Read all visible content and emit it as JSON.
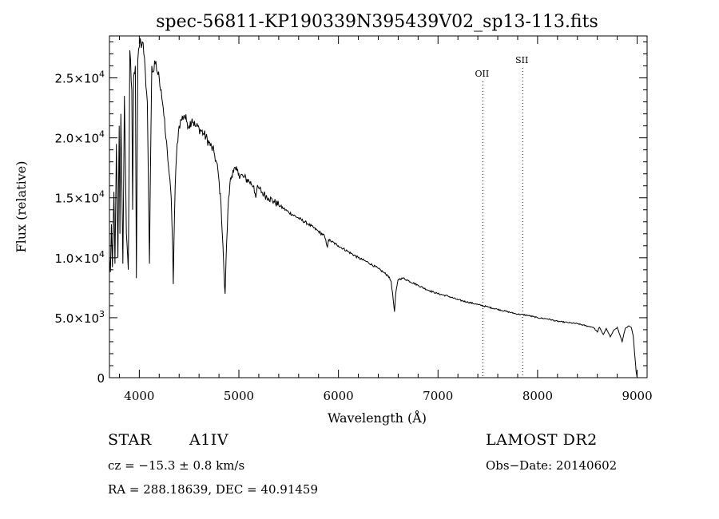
{
  "chart_data": {
    "type": "line",
    "title": "spec-56811-KP190339N395439V02_sp13-113.fits",
    "xlabel": "Wavelength (Å)",
    "ylabel": "Flux (relative)",
    "xlim": [
      3700,
      9100
    ],
    "ylim": [
      0,
      28500
    ],
    "grid": false,
    "x_ticks": [
      4000,
      5000,
      6000,
      7000,
      8000,
      9000
    ],
    "x_tick_labels": [
      "4000",
      "5000",
      "6000",
      "7000",
      "8000",
      "9000"
    ],
    "y_ticks": [
      {
        "value": 0,
        "mantissa": "0",
        "exponent": ""
      },
      {
        "value": 5000,
        "mantissa": "5.0×10",
        "exponent": "3"
      },
      {
        "value": 10000,
        "mantissa": "1.0×10",
        "exponent": "4"
      },
      {
        "value": 15000,
        "mantissa": "1.5×10",
        "exponent": "4"
      },
      {
        "value": 20000,
        "mantissa": "2.0×10",
        "exponent": "4"
      },
      {
        "value": 25000,
        "mantissa": "2.5×10",
        "exponent": "4"
      }
    ],
    "line_markers": [
      {
        "label": "OII",
        "x": 7450
      },
      {
        "label": "SII",
        "x": 7850
      }
    ],
    "series": [
      {
        "values": [
          {
            "x": 3700,
            "y": 10000
          },
          {
            "x": 3710,
            "y": 8800
          },
          {
            "x": 3720,
            "y": 12800
          },
          {
            "x": 3730,
            "y": 9200
          },
          {
            "x": 3745,
            "y": 15500
          },
          {
            "x": 3755,
            "y": 9500
          },
          {
            "x": 3770,
            "y": 19500
          },
          {
            "x": 3785,
            "y": 10000
          },
          {
            "x": 3798,
            "y": 21000
          },
          {
            "x": 3805,
            "y": 12000
          },
          {
            "x": 3815,
            "y": 22000
          },
          {
            "x": 3835,
            "y": 9500
          },
          {
            "x": 3850,
            "y": 23500
          },
          {
            "x": 3870,
            "y": 12000
          },
          {
            "x": 3889,
            "y": 9000
          },
          {
            "x": 3905,
            "y": 27300
          },
          {
            "x": 3925,
            "y": 24000
          },
          {
            "x": 3933,
            "y": 14000
          },
          {
            "x": 3942,
            "y": 25000
          },
          {
            "x": 3960,
            "y": 26000
          },
          {
            "x": 3970,
            "y": 8300
          },
          {
            "x": 3985,
            "y": 26500
          },
          {
            "x": 4000,
            "y": 27600
          },
          {
            "x": 4010,
            "y": 28300
          },
          {
            "x": 4020,
            "y": 27500
          },
          {
            "x": 4030,
            "y": 28000
          },
          {
            "x": 4045,
            "y": 27000
          },
          {
            "x": 4060,
            "y": 25500
          },
          {
            "x": 4080,
            "y": 23000
          },
          {
            "x": 4095,
            "y": 14000
          },
          {
            "x": 4102,
            "y": 9500
          },
          {
            "x": 4110,
            "y": 16000
          },
          {
            "x": 4125,
            "y": 26000
          },
          {
            "x": 4140,
            "y": 25500
          },
          {
            "x": 4160,
            "y": 26200
          },
          {
            "x": 4180,
            "y": 25500
          },
          {
            "x": 4200,
            "y": 25000
          },
          {
            "x": 4220,
            "y": 24000
          },
          {
            "x": 4240,
            "y": 22500
          },
          {
            "x": 4260,
            "y": 20500
          },
          {
            "x": 4280,
            "y": 19000
          },
          {
            "x": 4300,
            "y": 17000
          },
          {
            "x": 4320,
            "y": 15000
          },
          {
            "x": 4335,
            "y": 11000
          },
          {
            "x": 4341,
            "y": 7800
          },
          {
            "x": 4348,
            "y": 11500
          },
          {
            "x": 4360,
            "y": 16000
          },
          {
            "x": 4380,
            "y": 19500
          },
          {
            "x": 4400,
            "y": 21000
          },
          {
            "x": 4420,
            "y": 21500
          },
          {
            "x": 4450,
            "y": 21900
          },
          {
            "x": 4480,
            "y": 21300
          },
          {
            "x": 4500,
            "y": 21000
          },
          {
            "x": 4530,
            "y": 21600
          },
          {
            "x": 4560,
            "y": 21000
          },
          {
            "x": 4600,
            "y": 20800
          },
          {
            "x": 4650,
            "y": 20300
          },
          {
            "x": 4700,
            "y": 19600
          },
          {
            "x": 4750,
            "y": 18800
          },
          {
            "x": 4790,
            "y": 17300
          },
          {
            "x": 4820,
            "y": 14500
          },
          {
            "x": 4840,
            "y": 11000
          },
          {
            "x": 4856,
            "y": 7600
          },
          {
            "x": 4862,
            "y": 7000
          },
          {
            "x": 4870,
            "y": 9500
          },
          {
            "x": 4890,
            "y": 14000
          },
          {
            "x": 4910,
            "y": 16200
          },
          {
            "x": 4940,
            "y": 17300
          },
          {
            "x": 4970,
            "y": 17300
          },
          {
            "x": 5000,
            "y": 17000
          },
          {
            "x": 5050,
            "y": 16700
          },
          {
            "x": 5100,
            "y": 16400
          },
          {
            "x": 5150,
            "y": 16000
          },
          {
            "x": 5170,
            "y": 15000
          },
          {
            "x": 5180,
            "y": 15700
          },
          {
            "x": 5200,
            "y": 15800
          },
          {
            "x": 5250,
            "y": 15300
          },
          {
            "x": 5300,
            "y": 15000
          },
          {
            "x": 5350,
            "y": 14700
          },
          {
            "x": 5400,
            "y": 14400
          },
          {
            "x": 5450,
            "y": 14100
          },
          {
            "x": 5500,
            "y": 13800
          },
          {
            "x": 5600,
            "y": 13300
          },
          {
            "x": 5700,
            "y": 12800
          },
          {
            "x": 5800,
            "y": 12200
          },
          {
            "x": 5860,
            "y": 11800
          },
          {
            "x": 5890,
            "y": 10900
          },
          {
            "x": 5900,
            "y": 11500
          },
          {
            "x": 6000,
            "y": 11000
          },
          {
            "x": 6100,
            "y": 10500
          },
          {
            "x": 6200,
            "y": 10000
          },
          {
            "x": 6300,
            "y": 9600
          },
          {
            "x": 6400,
            "y": 9100
          },
          {
            "x": 6450,
            "y": 8800
          },
          {
            "x": 6500,
            "y": 8500
          },
          {
            "x": 6530,
            "y": 8000
          },
          {
            "x": 6550,
            "y": 6500
          },
          {
            "x": 6563,
            "y": 5500
          },
          {
            "x": 6575,
            "y": 7000
          },
          {
            "x": 6600,
            "y": 8200
          },
          {
            "x": 6650,
            "y": 8300
          },
          {
            "x": 6700,
            "y": 8100
          },
          {
            "x": 6800,
            "y": 7700
          },
          {
            "x": 6900,
            "y": 7300
          },
          {
            "x": 7000,
            "y": 7000
          },
          {
            "x": 7100,
            "y": 6800
          },
          {
            "x": 7200,
            "y": 6500
          },
          {
            "x": 7300,
            "y": 6300
          },
          {
            "x": 7400,
            "y": 6100
          },
          {
            "x": 7500,
            "y": 5900
          },
          {
            "x": 7600,
            "y": 5700
          },
          {
            "x": 7700,
            "y": 5500
          },
          {
            "x": 7800,
            "y": 5300
          },
          {
            "x": 7900,
            "y": 5200
          },
          {
            "x": 8000,
            "y": 5000
          },
          {
            "x": 8100,
            "y": 4900
          },
          {
            "x": 8200,
            "y": 4700
          },
          {
            "x": 8300,
            "y": 4600
          },
          {
            "x": 8400,
            "y": 4500
          },
          {
            "x": 8500,
            "y": 4300
          },
          {
            "x": 8560,
            "y": 4200
          },
          {
            "x": 8600,
            "y": 3800
          },
          {
            "x": 8620,
            "y": 4200
          },
          {
            "x": 8660,
            "y": 3600
          },
          {
            "x": 8690,
            "y": 4100
          },
          {
            "x": 8730,
            "y": 3400
          },
          {
            "x": 8770,
            "y": 4000
          },
          {
            "x": 8800,
            "y": 4200
          },
          {
            "x": 8850,
            "y": 3000
          },
          {
            "x": 8880,
            "y": 4100
          },
          {
            "x": 8910,
            "y": 4300
          },
          {
            "x": 8940,
            "y": 4200
          },
          {
            "x": 8960,
            "y": 3500
          },
          {
            "x": 8975,
            "y": 2000
          },
          {
            "x": 8990,
            "y": 500
          },
          {
            "x": 9000,
            "y": 0
          }
        ]
      }
    ]
  },
  "info": {
    "object_class": "STAR",
    "subclass": "A1IV",
    "survey": "LAMOST DR2",
    "redshift": "cz = −15.3 ± 0.8 km/s",
    "obs_date": "Obs−Date: 20140602",
    "coords": "RA = 288.18639, DEC =  40.91459"
  }
}
